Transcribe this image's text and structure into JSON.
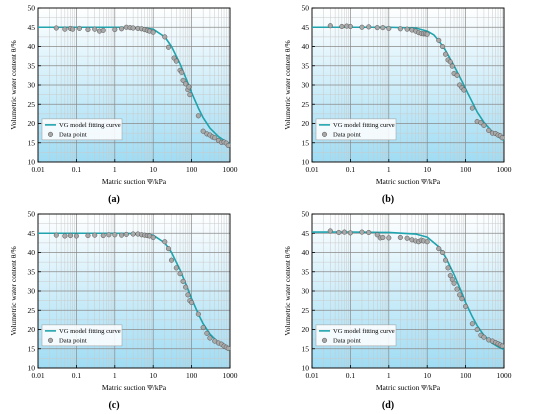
{
  "figure": {
    "panel_labels": [
      "(a)",
      "(b)",
      "(c)",
      "(d)"
    ]
  },
  "colors": {
    "curve": "#1fa3ad",
    "marker_fill": "#a8a8a8",
    "marker_stroke": "#555555",
    "bg_top": "#ffffff",
    "bg_bottom": "#9fdcf4",
    "grid_major": "#8a8a8a",
    "grid_minor": "#c9c9c9"
  },
  "chart_data": [
    {
      "type": "scatter",
      "panel": "(a)",
      "xlabel": "Matric suction Ψ/kPa",
      "ylabel": "Volumetric water content θ/%",
      "xscale": "log",
      "xlim": [
        0.01,
        1000
      ],
      "ylim": [
        10,
        50
      ],
      "xticks": [
        "0.01",
        "0.1",
        "1",
        "10",
        "100",
        "1000"
      ],
      "yticks": [
        "10",
        "15",
        "20",
        "25",
        "30",
        "35",
        "40",
        "45",
        "50"
      ],
      "grid": true,
      "legend": {
        "position": "bottom-left",
        "entries": [
          "VG model fitting curve",
          "Data point"
        ]
      },
      "series": [
        {
          "kind": "line",
          "label": "VG model fitting curve",
          "x": [
            0.01,
            0.1,
            1,
            5,
            10,
            20,
            30,
            50,
            80,
            100,
            150,
            200,
            300,
            500,
            700,
            1000
          ],
          "y": [
            45,
            45,
            45,
            44.9,
            44.5,
            42.5,
            40,
            35.5,
            30.5,
            28,
            24,
            21.5,
            18.8,
            16.6,
            15.6,
            14.7
          ]
        },
        {
          "kind": "scatter",
          "label": "Data point",
          "x": [
            0.03,
            0.05,
            0.07,
            0.08,
            0.12,
            0.2,
            0.3,
            0.4,
            0.5,
            1,
            1.5,
            2,
            2.5,
            3,
            4,
            5,
            6,
            7,
            8,
            10,
            20,
            25,
            35,
            40,
            50,
            55,
            60,
            70,
            80,
            85,
            90,
            150,
            200,
            250,
            300,
            350,
            400,
            500,
            600,
            700,
            800,
            900
          ],
          "y": [
            44.8,
            44.5,
            44.7,
            44.5,
            44.7,
            44.4,
            44.5,
            44.0,
            44.2,
            44.4,
            44.6,
            45.0,
            44.9,
            44.8,
            44.7,
            44.6,
            44.4,
            44.2,
            44.0,
            43.7,
            42.5,
            39.8,
            37.0,
            36.2,
            33.8,
            33.3,
            31.2,
            30.3,
            28.8,
            29.5,
            27.5,
            22.0,
            18.0,
            17.3,
            17.0,
            16.5,
            16.3,
            15.6,
            15.1,
            15.2,
            14.9,
            14.3
          ]
        }
      ]
    },
    {
      "type": "scatter",
      "panel": "(b)",
      "xlabel": "Matric suction Ψ/kPa",
      "ylabel": "Volumetric water content θ/%",
      "xscale": "log",
      "xlim": [
        0.01,
        1000
      ],
      "ylim": [
        10,
        50
      ],
      "xticks": [
        "0.01",
        "0.1",
        "1",
        "10",
        "100",
        "1000"
      ],
      "yticks": [
        "10",
        "15",
        "20",
        "25",
        "30",
        "35",
        "40",
        "45",
        "50"
      ],
      "grid": true,
      "legend": {
        "position": "bottom-left",
        "entries": [
          "VG model fitting curve",
          "Data point"
        ]
      },
      "series": [
        {
          "kind": "line",
          "label": "VG model fitting curve",
          "x": [
            0.01,
            0.1,
            1,
            5,
            10,
            15,
            20,
            30,
            50,
            80,
            100,
            150,
            200,
            300,
            500,
            700,
            1000
          ],
          "y": [
            45,
            45,
            45,
            44.8,
            44.0,
            43.0,
            41.5,
            39.0,
            35.0,
            31.0,
            29.0,
            25.5,
            23.0,
            20.3,
            17.8,
            16.6,
            15.6
          ]
        },
        {
          "kind": "scatter",
          "label": "Data point",
          "x": [
            0.03,
            0.06,
            0.08,
            0.1,
            0.2,
            0.3,
            0.5,
            0.7,
            1,
            2,
            3,
            4,
            5,
            6,
            7,
            8,
            9,
            10,
            20,
            25,
            30,
            35,
            40,
            45,
            50,
            60,
            70,
            80,
            90,
            150,
            200,
            250,
            300,
            400,
            500,
            600,
            700,
            800,
            900
          ],
          "y": [
            45.4,
            45.2,
            45.3,
            45.2,
            45.0,
            45.1,
            44.9,
            44.9,
            44.7,
            44.6,
            44.5,
            44.3,
            44.0,
            43.6,
            43.4,
            43.3,
            43.3,
            43.2,
            41.6,
            40.0,
            38.0,
            36.5,
            36.0,
            34.9,
            33.0,
            32.5,
            30.0,
            29.3,
            28.7,
            24.0,
            20.5,
            20.2,
            19.5,
            18.2,
            17.5,
            17.4,
            17.0,
            16.8,
            16.3
          ]
        }
      ]
    },
    {
      "type": "scatter",
      "panel": "(c)",
      "xlabel": "Matric suction Ψ/kPa",
      "ylabel": "Volumetric water content θ/%",
      "xscale": "log",
      "xlim": [
        0.01,
        1000
      ],
      "ylim": [
        10,
        50
      ],
      "xticks": [
        "0.01",
        "0.1",
        "1",
        "10",
        "100",
        "1000"
      ],
      "yticks": [
        "10",
        "15",
        "20",
        "25",
        "30",
        "35",
        "40",
        "45",
        "50"
      ],
      "grid": true,
      "legend": {
        "position": "bottom-left",
        "entries": [
          "VG model fitting curve",
          "Data point"
        ]
      },
      "series": [
        {
          "kind": "line",
          "label": "VG model fitting curve",
          "x": [
            0.01,
            0.1,
            1,
            5,
            10,
            20,
            30,
            50,
            80,
            100,
            150,
            200,
            300,
            500,
            700,
            1000
          ],
          "y": [
            45,
            45,
            45,
            44.9,
            44.5,
            42.5,
            40.0,
            35.5,
            30.5,
            28.0,
            24.0,
            21.5,
            18.8,
            16.6,
            15.6,
            14.7
          ]
        },
        {
          "kind": "scatter",
          "label": "Data point",
          "x": [
            0.03,
            0.05,
            0.07,
            0.1,
            0.2,
            0.3,
            0.5,
            0.7,
            1,
            1.5,
            2,
            3,
            4,
            5,
            6,
            7,
            8,
            10,
            20,
            25,
            30,
            40,
            50,
            60,
            70,
            80,
            90,
            100,
            150,
            200,
            250,
            300,
            400,
            500,
            600,
            700,
            800,
            900
          ],
          "y": [
            44.5,
            44.3,
            44.4,
            44.3,
            44.4,
            44.5,
            44.4,
            44.6,
            44.6,
            44.5,
            44.7,
            44.8,
            44.8,
            44.6,
            44.5,
            44.4,
            44.3,
            43.9,
            42.8,
            41.0,
            38.0,
            36.0,
            34.5,
            32.5,
            31.0,
            29.0,
            27.5,
            27.0,
            24.0,
            20.5,
            19.0,
            17.8,
            17.0,
            16.5,
            16.2,
            15.7,
            15.4,
            15.1
          ]
        }
      ]
    },
    {
      "type": "scatter",
      "panel": "(d)",
      "xlabel": "Matric suction Ψ/kPa",
      "ylabel": "Volumetric water content θ/%",
      "xscale": "log",
      "xlim": [
        0.01,
        1000
      ],
      "ylim": [
        10,
        50
      ],
      "xticks": [
        "0.01",
        "0.1",
        "1",
        "10",
        "100",
        "1000"
      ],
      "yticks": [
        "10",
        "15",
        "20",
        "25",
        "30",
        "35",
        "40",
        "45",
        "50"
      ],
      "grid": true,
      "legend": {
        "position": "bottom-left",
        "entries": [
          "VG model fitting curve",
          "Data point"
        ]
      },
      "series": [
        {
          "kind": "line",
          "label": "VG model fitting curve",
          "x": [
            0.01,
            0.1,
            1,
            5,
            10,
            20,
            30,
            50,
            80,
            100,
            150,
            200,
            300,
            500,
            700,
            1000
          ],
          "y": [
            45.3,
            45.3,
            45.2,
            44.8,
            44.0,
            41.5,
            38.8,
            34.3,
            29.5,
            27.0,
            23.3,
            21.0,
            18.5,
            16.4,
            15.5,
            14.8
          ]
        },
        {
          "kind": "scatter",
          "label": "Data point",
          "x": [
            0.03,
            0.05,
            0.07,
            0.1,
            0.2,
            0.3,
            0.5,
            0.6,
            0.7,
            1,
            2,
            3,
            4,
            5,
            6,
            7,
            8,
            10,
            20,
            25,
            30,
            35,
            40,
            45,
            50,
            60,
            70,
            80,
            100,
            150,
            200,
            250,
            300,
            400,
            500,
            600,
            700,
            800,
            900
          ],
          "y": [
            45.6,
            45.2,
            45.3,
            45.1,
            45.3,
            45.2,
            44.6,
            43.8,
            43.9,
            43.8,
            43.9,
            43.7,
            43.3,
            43.0,
            42.8,
            43.2,
            43.0,
            42.8,
            41.0,
            40.0,
            38.0,
            36.0,
            34.0,
            33.0,
            32.0,
            30.5,
            29.0,
            28.0,
            26.0,
            21.5,
            20.0,
            18.5,
            18.0,
            17.3,
            17.0,
            16.6,
            16.3,
            16.0,
            15.7
          ]
        }
      ]
    }
  ]
}
